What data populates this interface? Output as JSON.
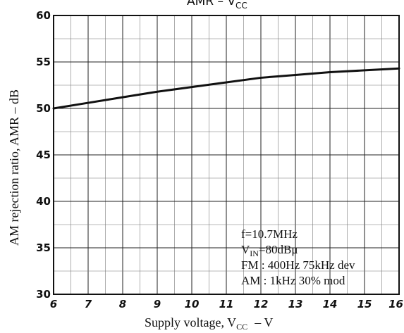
{
  "chart_data": {
    "type": "line",
    "title": "AMR – V",
    "title_sub": "CC",
    "xlabel": "Supply voltage, V",
    "xlabel_sub": "CC",
    "xlabel_unit": "–  V",
    "ylabel": "AM rejection ratio, AMR   –  dB",
    "xlim": [
      6,
      16
    ],
    "ylim": [
      30,
      60
    ],
    "x_ticks": [
      "6",
      "7",
      "8",
      "9",
      "10",
      "11",
      "12",
      "13",
      "14",
      "15",
      "16"
    ],
    "y_ticks": [
      "30",
      "35",
      "40",
      "45",
      "50",
      "55",
      "60"
    ],
    "grid": true,
    "x_minor_step": 0.5,
    "y_minor_step": 2.5,
    "series": [
      {
        "x": [
          6,
          7,
          8,
          9,
          10,
          11,
          12,
          13,
          14,
          15,
          16
        ],
        "y": [
          50.0,
          50.6,
          51.2,
          51.8,
          52.3,
          52.8,
          53.3,
          53.6,
          53.9,
          54.1,
          54.3
        ]
      }
    ],
    "annotation_lines": [
      {
        "text": "f=10.7MHz"
      },
      {
        "text": "V",
        "sub": "IN",
        "after": "=80dBμ"
      },
      {
        "text": "FM : 400Hz 75kHz dev"
      },
      {
        "text": "AM : 1kHz 30% mod"
      }
    ]
  }
}
